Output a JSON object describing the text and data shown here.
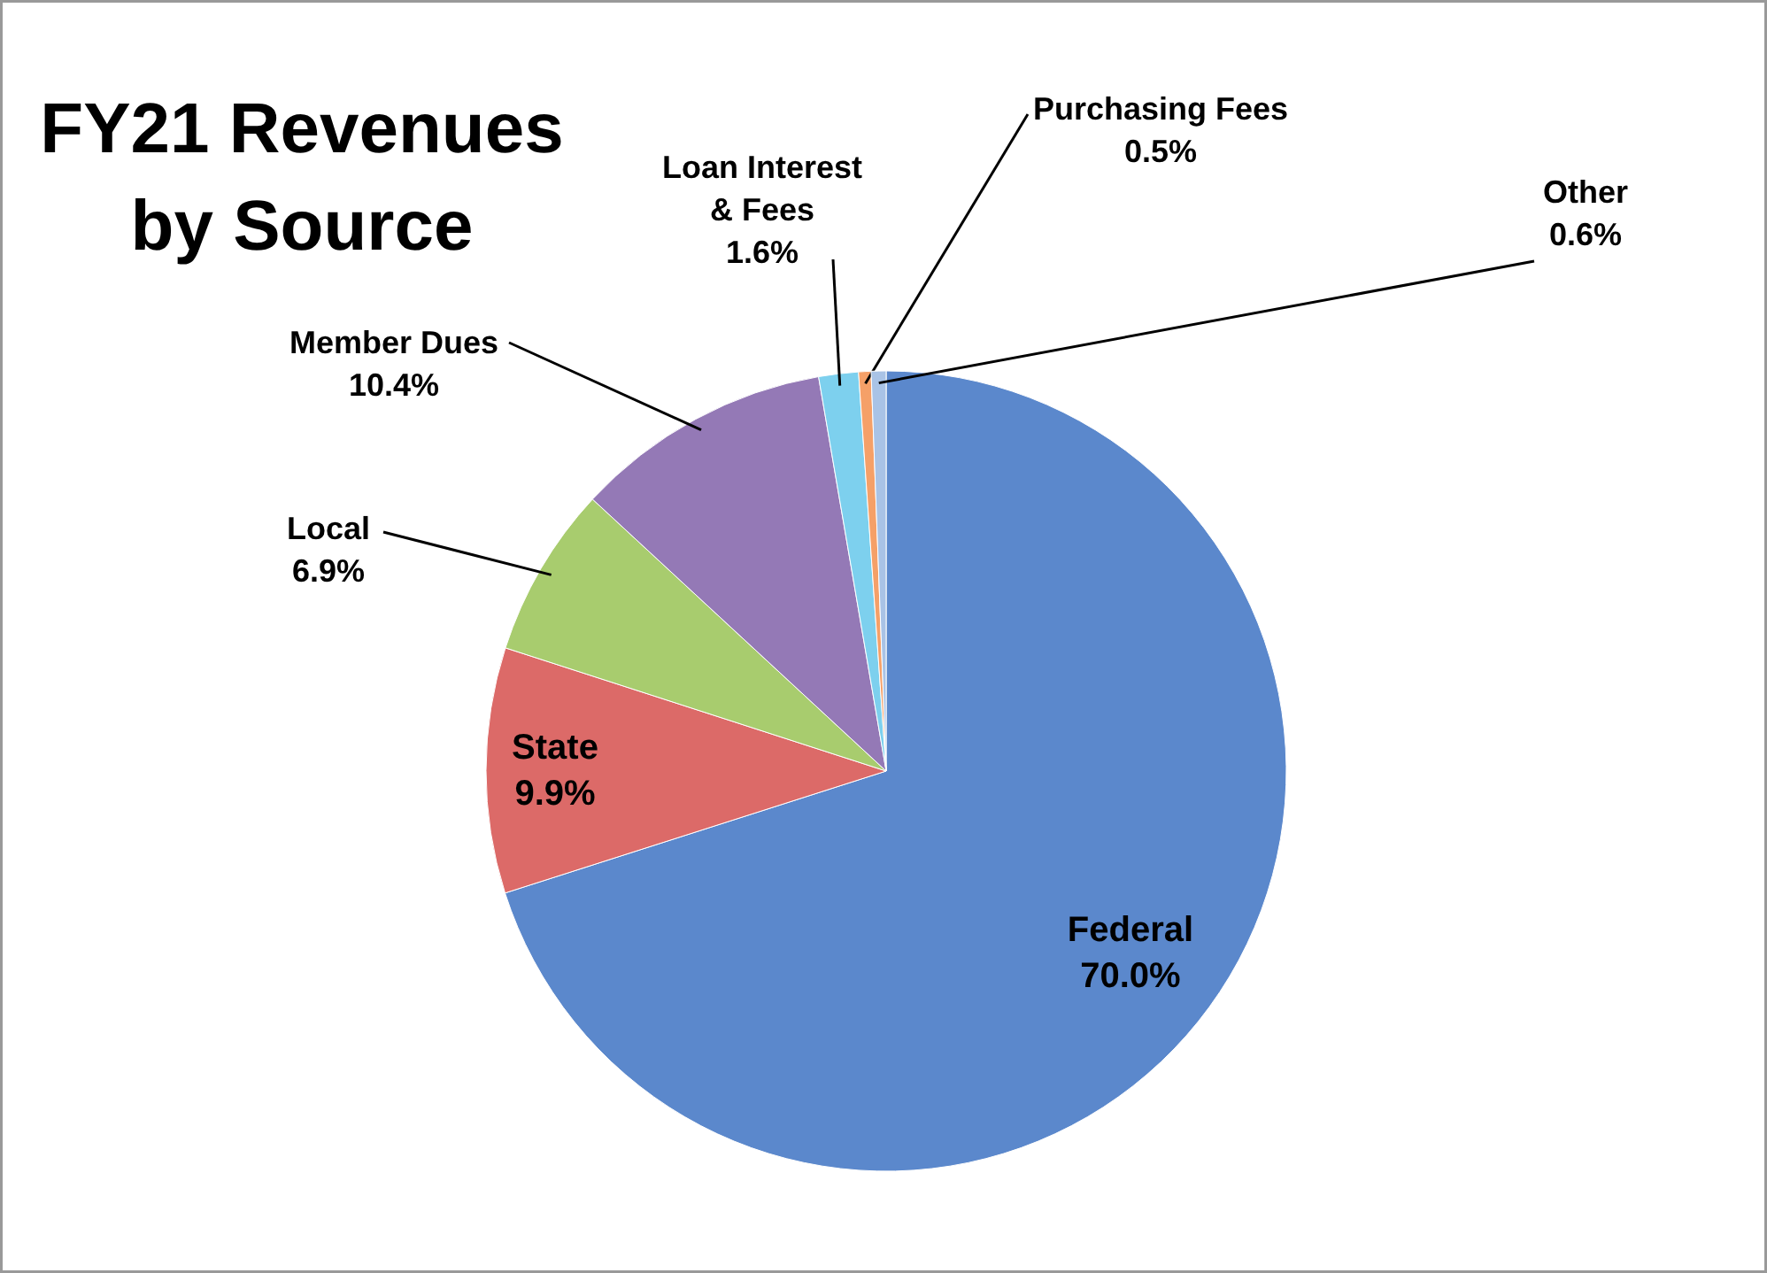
{
  "chart_data": {
    "type": "pie",
    "title": "FY21 Revenues by Source",
    "categories": [
      "Federal",
      "State",
      "Local",
      "Member Dues",
      "Loan Interest & Fees",
      "Purchasing Fees",
      "Other"
    ],
    "values": [
      70.0,
      9.9,
      6.9,
      10.4,
      1.6,
      0.5,
      0.6
    ],
    "value_labels": [
      "70.0%",
      "9.9%",
      "6.9%",
      "10.4%",
      "1.6%",
      "0.5%",
      "0.6%"
    ],
    "colors": [
      "#5b88cc",
      "#dc6a68",
      "#a8cc6e",
      "#9479b6",
      "#7dd0ee",
      "#f5a068",
      "#a9c3e6"
    ]
  }
}
